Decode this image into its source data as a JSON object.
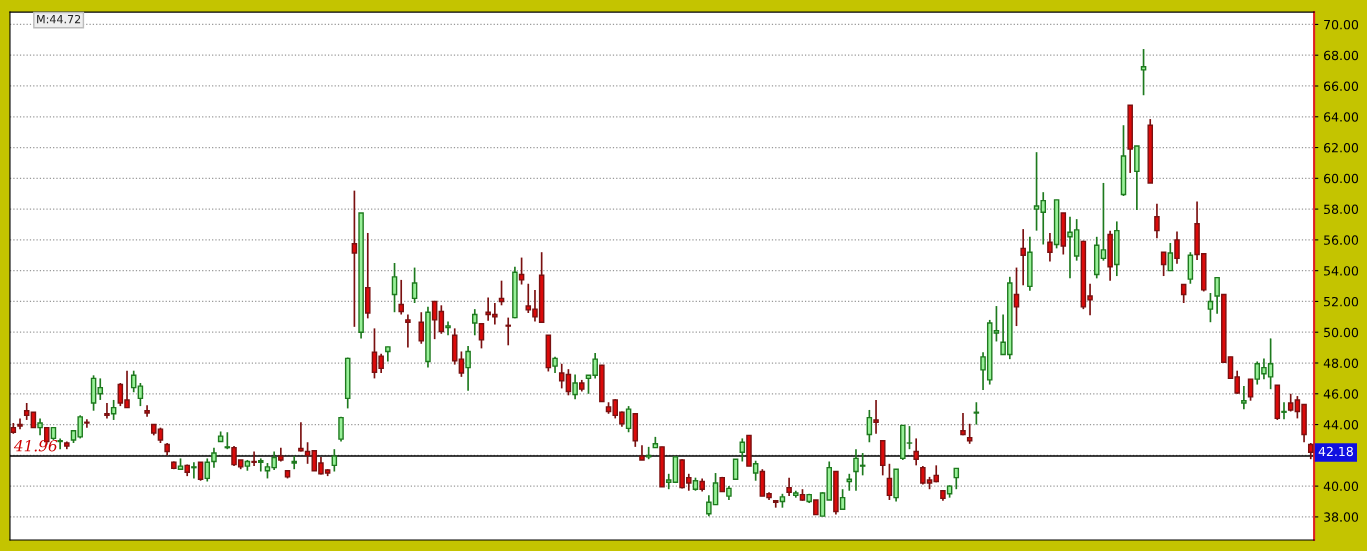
{
  "chart_data": {
    "type": "candlestick",
    "categories": [
      null,
      null,
      null,
      null,
      null,
      null,
      null,
      null,
      null,
      null,
      null,
      null,
      null,
      null,
      null,
      null,
      null,
      null,
      null,
      null,
      null,
      null,
      null,
      null,
      null,
      null,
      null,
      null,
      null,
      null,
      null,
      null,
      null,
      null,
      null,
      null,
      null,
      null,
      null,
      null,
      null,
      null,
      null,
      null,
      null,
      null,
      null,
      null,
      null,
      null,
      null,
      null,
      null,
      null,
      null,
      null,
      null,
      null,
      null,
      null,
      null,
      null,
      null,
      null,
      null,
      null,
      null,
      null,
      null,
      null,
      null,
      null,
      null,
      null,
      null,
      null,
      null,
      null,
      null,
      null,
      null,
      null,
      null,
      null,
      null,
      null,
      null,
      null,
      null,
      null,
      null,
      null,
      null,
      null,
      null,
      null,
      null,
      null,
      null,
      null,
      null,
      null,
      null,
      null,
      null,
      null,
      null,
      null,
      null,
      null,
      null,
      null,
      null,
      null,
      null,
      null,
      null,
      null,
      null,
      null,
      null,
      null,
      null,
      null,
      null,
      null,
      null,
      null,
      null,
      null,
      null,
      null,
      null,
      null,
      null,
      null,
      null,
      null,
      null,
      null,
      null,
      null,
      null,
      null,
      null,
      null,
      null,
      null,
      null,
      null,
      null,
      null,
      null,
      null,
      null,
      null,
      null,
      null,
      null,
      null,
      null,
      null,
      null,
      null,
      null,
      null,
      null,
      null,
      null,
      null,
      null,
      null,
      null,
      null,
      null,
      null,
      null,
      null,
      null,
      null,
      null,
      null,
      null,
      null,
      null,
      null,
      null,
      null,
      null,
      null,
      null,
      null,
      null,
      null,
      null
    ],
    "ohlc": [
      [
        43.8,
        44.1,
        43.4,
        43.5
      ],
      [
        44.0,
        44.4,
        43.7,
        43.9
      ],
      [
        44.9,
        45.4,
        44.3,
        44.6
      ],
      [
        44.8,
        44.8,
        43.8,
        43.8
      ],
      [
        43.8,
        44.4,
        43.3,
        44.1
      ],
      [
        43.8,
        43.8,
        42.7,
        42.9
      ],
      [
        43.1,
        43.8,
        43.0,
        43.8
      ],
      [
        42.9,
        43.1,
        42.4,
        42.95
      ],
      [
        42.8,
        42.9,
        42.4,
        42.6
      ],
      [
        43.0,
        43.6,
        42.8,
        43.6
      ],
      [
        43.2,
        44.6,
        43.1,
        44.5
      ],
      [
        44.15,
        44.35,
        43.8,
        44.1
      ],
      [
        45.4,
        47.2,
        44.9,
        47.0
      ],
      [
        46.0,
        47.0,
        45.6,
        46.4
      ],
      [
        44.7,
        45.4,
        44.4,
        44.6
      ],
      [
        44.7,
        45.6,
        44.3,
        45.1
      ],
      [
        46.6,
        46.7,
        45.2,
        45.4
      ],
      [
        45.6,
        47.5,
        45.1,
        45.1
      ],
      [
        46.4,
        47.5,
        46.1,
        47.2
      ],
      [
        45.7,
        46.7,
        45.2,
        46.5
      ],
      [
        44.9,
        45.25,
        44.5,
        44.75
      ],
      [
        44.0,
        44.0,
        43.3,
        43.45
      ],
      [
        43.7,
        43.8,
        42.8,
        43.0
      ],
      [
        42.7,
        42.8,
        42.0,
        42.25
      ],
      [
        41.55,
        41.6,
        41.1,
        41.15
      ],
      [
        41.1,
        41.8,
        41.1,
        41.3
      ],
      [
        41.35,
        41.4,
        40.65,
        40.9
      ],
      [
        41.2,
        41.55,
        40.5,
        41.25
      ],
      [
        41.55,
        41.55,
        40.35,
        40.45
      ],
      [
        40.5,
        41.8,
        40.3,
        41.55
      ],
      [
        41.6,
        42.5,
        41.2,
        42.15
      ],
      [
        42.9,
        43.55,
        42.9,
        43.25
      ],
      [
        42.5,
        43.5,
        42.4,
        42.55
      ],
      [
        42.5,
        42.6,
        41.3,
        41.4
      ],
      [
        41.7,
        41.7,
        41.1,
        41.25
      ],
      [
        41.3,
        41.7,
        41.0,
        41.6
      ],
      [
        41.6,
        42.25,
        41.3,
        41.55
      ],
      [
        41.55,
        41.8,
        40.95,
        41.65
      ],
      [
        41.0,
        41.5,
        40.5,
        41.25
      ],
      [
        41.2,
        42.25,
        41.05,
        41.85
      ],
      [
        41.95,
        42.5,
        41.6,
        41.7
      ],
      [
        41.0,
        41.0,
        40.5,
        40.6
      ],
      [
        41.5,
        41.95,
        41.1,
        41.6
      ],
      [
        42.45,
        44.15,
        42.25,
        42.3
      ],
      [
        42.25,
        42.85,
        41.45,
        42.0
      ],
      [
        42.3,
        42.3,
        41.0,
        41.0
      ],
      [
        41.5,
        41.9,
        40.75,
        40.8
      ],
      [
        41.05,
        41.1,
        40.65,
        40.85
      ],
      [
        41.35,
        42.4,
        40.95,
        41.95
      ],
      [
        43.05,
        44.5,
        42.9,
        44.45
      ],
      [
        45.7,
        48.35,
        45.05,
        48.3
      ],
      [
        55.75,
        59.2,
        50.35,
        55.15
      ],
      [
        50.0,
        57.75,
        49.6,
        57.75
      ],
      [
        52.9,
        56.45,
        50.9,
        51.25
      ],
      [
        48.7,
        50.25,
        47.0,
        47.4
      ],
      [
        48.45,
        48.6,
        47.35,
        47.65
      ],
      [
        48.75,
        49.05,
        48.1,
        49.05
      ],
      [
        52.45,
        54.5,
        51.3,
        53.6
      ],
      [
        51.8,
        53.4,
        51.15,
        51.35
      ],
      [
        50.8,
        51.15,
        49.0,
        50.65
      ],
      [
        52.2,
        54.2,
        51.9,
        53.2
      ],
      [
        50.65,
        51.3,
        49.25,
        49.45
      ],
      [
        48.1,
        51.65,
        47.7,
        51.3
      ],
      [
        52.0,
        52.0,
        49.55,
        50.8
      ],
      [
        51.35,
        51.75,
        49.9,
        50.05
      ],
      [
        50.3,
        50.7,
        49.8,
        50.4
      ],
      [
        49.8,
        50.25,
        47.9,
        48.15
      ],
      [
        48.25,
        48.75,
        47.1,
        47.35
      ],
      [
        47.7,
        49.1,
        46.2,
        48.75
      ],
      [
        50.6,
        51.5,
        49.8,
        51.15
      ],
      [
        50.55,
        50.55,
        48.95,
        49.5
      ],
      [
        51.3,
        52.25,
        50.75,
        51.15
      ],
      [
        51.15,
        51.9,
        50.5,
        51.0
      ],
      [
        52.2,
        53.35,
        51.75,
        52.0
      ],
      [
        50.45,
        50.95,
        49.15,
        50.4
      ],
      [
        50.95,
        54.25,
        50.9,
        53.9
      ],
      [
        53.75,
        54.85,
        53.1,
        53.4
      ],
      [
        51.7,
        53.15,
        51.25,
        51.45
      ],
      [
        51.5,
        52.75,
        50.7,
        51.0
      ],
      [
        53.7,
        55.2,
        50.6,
        50.65
      ],
      [
        49.8,
        49.8,
        47.45,
        47.7
      ],
      [
        47.8,
        48.4,
        47.35,
        48.3
      ],
      [
        47.35,
        47.95,
        46.35,
        46.85
      ],
      [
        47.25,
        47.6,
        45.9,
        46.15
      ],
      [
        45.95,
        47.25,
        45.65,
        46.7
      ],
      [
        46.7,
        46.9,
        46.15,
        46.3
      ],
      [
        47.0,
        47.2,
        46.0,
        47.2
      ],
      [
        47.2,
        48.65,
        47.0,
        48.25
      ],
      [
        47.85,
        47.85,
        45.5,
        45.5
      ],
      [
        45.15,
        45.45,
        44.7,
        44.85
      ],
      [
        45.6,
        45.65,
        44.4,
        44.6
      ],
      [
        44.8,
        44.85,
        43.85,
        44.05
      ],
      [
        43.75,
        45.2,
        43.5,
        45.0
      ],
      [
        44.7,
        44.7,
        42.55,
        42.95
      ],
      [
        41.95,
        42.65,
        41.7,
        41.7
      ],
      [
        41.9,
        42.55,
        41.75,
        42.0
      ],
      [
        42.5,
        43.2,
        42.5,
        42.75
      ],
      [
        42.55,
        42.55,
        39.95,
        39.95
      ],
      [
        40.25,
        40.8,
        39.8,
        40.4
      ],
      [
        40.25,
        41.9,
        40.2,
        41.9
      ],
      [
        41.7,
        41.75,
        39.85,
        39.9
      ],
      [
        40.55,
        40.8,
        39.7,
        40.2
      ],
      [
        39.8,
        40.55,
        39.7,
        40.35
      ],
      [
        40.3,
        40.5,
        39.65,
        39.8
      ],
      [
        38.2,
        39.4,
        38.05,
        38.95
      ],
      [
        38.8,
        40.85,
        38.8,
        40.2
      ],
      [
        40.55,
        40.6,
        39.65,
        39.65
      ],
      [
        39.35,
        40.0,
        39.1,
        39.85
      ],
      [
        40.45,
        41.75,
        40.45,
        41.75
      ],
      [
        42.2,
        43.1,
        41.6,
        42.85
      ],
      [
        43.3,
        43.3,
        41.3,
        41.3
      ],
      [
        40.85,
        41.65,
        40.35,
        41.45
      ],
      [
        40.95,
        41.1,
        39.35,
        39.35
      ],
      [
        39.5,
        39.6,
        39.1,
        39.25
      ],
      [
        39.05,
        39.1,
        38.6,
        38.95
      ],
      [
        39.0,
        39.5,
        38.6,
        39.3
      ],
      [
        39.9,
        40.55,
        39.35,
        39.6
      ],
      [
        39.4,
        39.7,
        39.25,
        39.55
      ],
      [
        39.45,
        39.8,
        39.05,
        39.1
      ],
      [
        39.0,
        39.5,
        38.9,
        39.45
      ],
      [
        39.1,
        39.1,
        38.15,
        38.15
      ],
      [
        38.05,
        39.6,
        38.05,
        39.55
      ],
      [
        39.1,
        41.6,
        39.1,
        41.2
      ],
      [
        40.95,
        40.95,
        38.15,
        38.35
      ],
      [
        38.5,
        39.8,
        38.45,
        39.25
      ],
      [
        40.3,
        40.8,
        39.7,
        40.45
      ],
      [
        40.95,
        42.4,
        39.7,
        41.8
      ],
      [
        41.3,
        42.15,
        40.7,
        41.35
      ],
      [
        43.35,
        44.95,
        42.85,
        44.45
      ],
      [
        44.3,
        45.6,
        43.4,
        44.15
      ],
      [
        42.95,
        42.95,
        40.7,
        41.35
      ],
      [
        40.5,
        41.45,
        39.1,
        39.4
      ],
      [
        39.25,
        41.1,
        39.0,
        41.1
      ],
      [
        41.8,
        43.95,
        41.7,
        43.95
      ],
      [
        42.8,
        43.9,
        42.4,
        42.8
      ],
      [
        42.25,
        43.1,
        41.35,
        41.75
      ],
      [
        41.2,
        41.3,
        40.1,
        40.2
      ],
      [
        40.4,
        40.6,
        39.8,
        40.2
      ],
      [
        40.7,
        41.35,
        40.25,
        40.3
      ],
      [
        39.7,
        39.75,
        39.05,
        39.2
      ],
      [
        39.5,
        40.05,
        39.25,
        40.0
      ],
      [
        40.55,
        41.15,
        39.8,
        41.15
      ],
      [
        43.6,
        44.75,
        43.3,
        43.35
      ],
      [
        43.15,
        44.05,
        42.75,
        42.95
      ],
      [
        44.75,
        45.45,
        44.0,
        44.8
      ],
      [
        47.55,
        48.7,
        46.25,
        48.4
      ],
      [
        46.9,
        50.8,
        46.6,
        50.6
      ],
      [
        49.95,
        51.7,
        49.4,
        50.1
      ],
      [
        48.55,
        51.15,
        48.55,
        49.35
      ],
      [
        48.55,
        53.6,
        48.25,
        53.2
      ],
      [
        52.45,
        54.2,
        50.4,
        51.65
      ],
      [
        55.45,
        56.7,
        53.05,
        55.0
      ],
      [
        52.98,
        56.2,
        52.7,
        55.2
      ],
      [
        58.0,
        61.7,
        56.6,
        58.2
      ],
      [
        57.8,
        59.1,
        55.7,
        58.55
      ],
      [
        55.85,
        56.45,
        54.6,
        55.2
      ],
      [
        55.7,
        58.6,
        55.45,
        58.6
      ],
      [
        57.75,
        57.75,
        55.05,
        55.6
      ],
      [
        56.2,
        57.5,
        53.5,
        56.5
      ],
      [
        54.95,
        57.35,
        54.65,
        56.65
      ],
      [
        55.9,
        55.95,
        51.5,
        51.65
      ],
      [
        52.35,
        53.15,
        51.1,
        52.1
      ],
      [
        53.75,
        56.2,
        53.5,
        55.65
      ],
      [
        54.8,
        59.7,
        54.65,
        55.35
      ],
      [
        56.35,
        56.6,
        53.35,
        54.25
      ],
      [
        54.4,
        57.2,
        53.65,
        56.6
      ],
      [
        58.95,
        63.45,
        58.85,
        61.45
      ],
      [
        64.75,
        64.75,
        60.35,
        61.9
      ],
      [
        60.45,
        62.1,
        57.95,
        62.1
      ],
      [
        67.05,
        68.4,
        65.4,
        67.25
      ],
      [
        63.45,
        63.85,
        59.7,
        59.7
      ],
      [
        57.5,
        58.35,
        56.1,
        56.6
      ],
      [
        55.2,
        55.2,
        53.65,
        54.4
      ],
      [
        54.0,
        55.8,
        54.0,
        55.15
      ],
      [
        56.0,
        56.55,
        54.45,
        54.8
      ],
      [
        53.1,
        53.1,
        51.9,
        52.45
      ],
      [
        53.45,
        55.2,
        53.15,
        55.0
      ],
      [
        57.05,
        58.5,
        54.7,
        55.05
      ],
      [
        55.1,
        55.1,
        52.65,
        52.75
      ],
      [
        51.5,
        52.55,
        50.65,
        52.0
      ],
      [
        52.35,
        53.55,
        51.2,
        53.55
      ],
      [
        52.45,
        52.45,
        48.05,
        48.05
      ],
      [
        48.4,
        48.4,
        47.0,
        47.0
      ],
      [
        47.1,
        47.5,
        46.0,
        46.05
      ],
      [
        45.4,
        46.5,
        45.0,
        45.55
      ],
      [
        46.95,
        46.95,
        45.55,
        45.8
      ],
      [
        46.95,
        48.1,
        46.6,
        47.95
      ],
      [
        47.3,
        48.3,
        46.95,
        47.7
      ],
      [
        47.1,
        49.6,
        46.3,
        47.95
      ],
      [
        46.55,
        46.55,
        44.3,
        44.4
      ],
      [
        44.8,
        45.45,
        44.35,
        44.85
      ],
      [
        45.4,
        46.0,
        44.85,
        44.95
      ],
      [
        45.6,
        45.85,
        44.4,
        44.85
      ],
      [
        45.3,
        45.3,
        42.85,
        43.35
      ],
      [
        42.7,
        42.8,
        41.75,
        42.2
      ]
    ],
    "ylim": [
      36.5,
      70.8
    ],
    "yticks": [
      {
        "value": 38,
        "label": "38.00"
      },
      {
        "value": 40,
        "label": "40.00"
      },
      {
        "value": 42,
        "label": null
      },
      {
        "value": 44,
        "label": "44.00"
      },
      {
        "value": 46,
        "label": "46.00"
      },
      {
        "value": 48,
        "label": "48.00"
      },
      {
        "value": 50,
        "label": "50.00"
      },
      {
        "value": 52,
        "label": "52.00"
      },
      {
        "value": 54,
        "label": "54.00"
      },
      {
        "value": 56,
        "label": "56.00"
      },
      {
        "value": 58,
        "label": "58.00"
      },
      {
        "value": 60,
        "label": "60.00"
      },
      {
        "value": 62,
        "label": "62.00"
      },
      {
        "value": 64,
        "label": "64.00"
      },
      {
        "value": 66,
        "label": "66.00"
      },
      {
        "value": 68,
        "label": "68.00"
      },
      {
        "value": 70,
        "label": "70.00"
      }
    ],
    "grid": "y",
    "tick_labels": "y",
    "ref_lines": [
      {
        "axis": "y",
        "value": 41.96,
        "label": "41.96",
        "color": "#000000"
      }
    ],
    "annotations": [
      "M:44.72",
      {
        "text": "42.18",
        "y": 42.18
      }
    ]
  }
}
